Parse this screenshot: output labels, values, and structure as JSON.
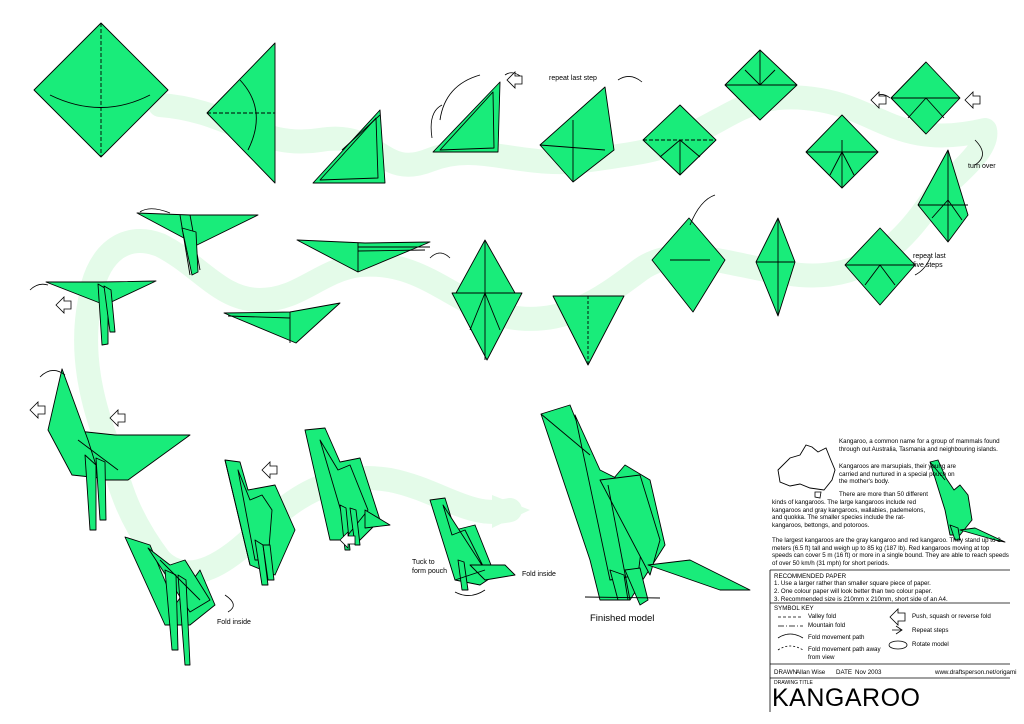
{
  "labels": {
    "repeat_last_step": "repeat last step",
    "turn_over": "turn over",
    "repeat_last_five_steps": "repeat last\nfive steps",
    "tuck_pouch": "Tuck to\nform pouch",
    "fold_inside_1": "Fold inside",
    "fold_inside_2": "Fold inside",
    "finished_model": "Finished model"
  },
  "info": {
    "p1": "Kangaroo, a common name for a group of mammals found through out Australia, Tasmania and neighbouring islands.",
    "p2": "Kangaroos are marsupials, their young are carried and nurtured in a special pouch on the mother's body.",
    "p3a": "There are more than 50 different",
    "p3b": "kinds of kangaroos. The large kangaroos include red kangaroos and gray kangaroos, wallabies, pademelons, and quokka. The smaller species include the rat-kangaroos, bettongs, and potoroos.",
    "p4": "The largest kangaroos are the gray kangaroo and red kangaroo. They stand up to 2 meters (6.5 ft) tall and weigh up to 85 kg (187 lb). Red kangaroos moving at top speeds can cover 5 m (16 ft) or more in a single bound. They are able to reach speeds of over 50 km/h (31 mph) for short periods."
  },
  "paper": {
    "heading": "RECOMMENDED PAPER",
    "items": [
      "1. Use a larger rather than smaller square piece of paper.",
      "2. One colour paper will look better than two colour paper.",
      "3. Recommended size is 210mm x 210mm, short side of an A4."
    ]
  },
  "symbols": {
    "heading": "SYMBOL KEY",
    "valley": "Valley fold",
    "mountain": "Mountain fold",
    "movement": "Fold movement path",
    "movement_away": "Fold movement path away\nfrom view",
    "push": "Push, squash or reverse fold",
    "repeat": "Repeat steps",
    "rotate": "Rotate model"
  },
  "titleblock": {
    "drawn_label": "DRAWN",
    "drawn_value": "Allan Wise",
    "date_label": "DATE",
    "date_value": "Nov 2003",
    "url": "www.draftsperson.net/origami",
    "title_label": "DRAWING TITLE",
    "title": "KANGAROO"
  },
  "colors": {
    "paper_green": "#19ec7a",
    "path_green": "#e4fbe9",
    "line": "#000000"
  }
}
